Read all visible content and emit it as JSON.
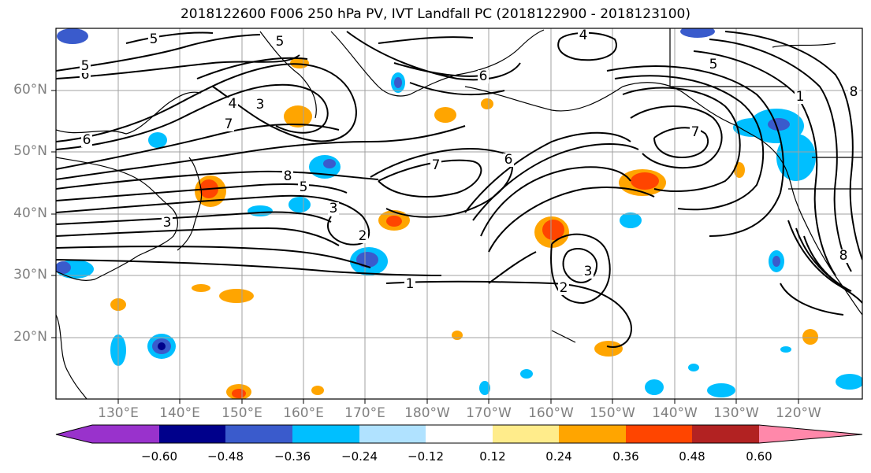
{
  "title": "2018122600 F006 250 hPa PV, IVT Landfall PC (2018122900 - 2018123100)",
  "map": {
    "lat_labels": [
      "60°N",
      "50°N",
      "40°N",
      "30°N",
      "20°N"
    ],
    "lon_labels": [
      "130°E",
      "140°E",
      "150°E",
      "160°E",
      "170°E",
      "180°W",
      "170°W",
      "160°W",
      "150°W",
      "140°W",
      "130°W",
      "120°W"
    ],
    "contour_labels": [
      "5",
      "5",
      "4",
      "5",
      "6",
      "6",
      "8",
      "5",
      "4",
      "3",
      "7",
      "6",
      "5",
      "3",
      "3",
      "2",
      "1",
      "7",
      "6",
      "7",
      "2",
      "3",
      "1",
      "8",
      "8"
    ],
    "colors": {
      "land": "#000000",
      "grid": "#a0a0a0",
      "contour": "#000000"
    }
  },
  "colorbar": {
    "tick_labels": [
      "−0.60",
      "−0.48",
      "−0.36",
      "−0.24",
      "−0.12",
      "0.12",
      "0.24",
      "0.36",
      "0.48",
      "0.60"
    ],
    "colors": [
      "#9932cc",
      "#00008b",
      "#3a5bcc",
      "#00bfff",
      "#b0e2ff",
      "#ffffff",
      "#ffec8b",
      "#ffa500",
      "#ff4500",
      "#b22222",
      "#ff88aa"
    ]
  }
}
